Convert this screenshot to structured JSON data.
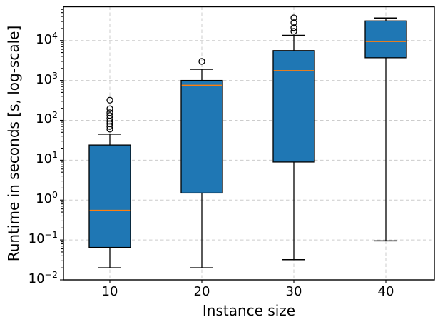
{
  "chart_data": {
    "type": "boxplot",
    "title": "",
    "xlabel": "Instance size",
    "ylabel": "Runtime in seconds [s, log-scale]",
    "x_categories": [
      "10",
      "20",
      "30",
      "40"
    ],
    "y_scale": "log",
    "ylim": [
      0.01,
      70000
    ],
    "grid": {
      "visible": true,
      "style": "dashed",
      "color": "#cccccc"
    },
    "legend": "none",
    "y_ticks": [
      {
        "base": "10",
        "exp": "4",
        "value": 10000
      },
      {
        "base": "10",
        "exp": "3",
        "value": 1000
      },
      {
        "base": "10",
        "exp": "2",
        "value": 100
      },
      {
        "base": "10",
        "exp": "1",
        "value": 10
      },
      {
        "base": "10",
        "exp": "0",
        "value": 1
      },
      {
        "base": "10",
        "exp": "−1",
        "value": 0.1
      },
      {
        "base": "10",
        "exp": "−2",
        "value": 0.01
      }
    ],
    "colors": {
      "box_fill": "#1f77b4",
      "box_edge": "#000000",
      "median": "#ff7f0e",
      "whisker": "#000000",
      "flier_edge": "#000000",
      "grid": "#cccccc"
    },
    "boxes": [
      {
        "category": "10",
        "whisker_low": 0.02,
        "q1": 0.065,
        "median": 0.55,
        "q3": 24,
        "whisker_high": 45,
        "outliers": [
          60,
          70,
          82,
          95,
          112,
          132,
          155,
          195,
          320
        ]
      },
      {
        "category": "20",
        "whisker_low": 0.02,
        "q1": 1.5,
        "median": 750,
        "q3": 1000,
        "whisker_high": 1900,
        "outliers": [
          3000
        ]
      },
      {
        "category": "30",
        "whisker_low": 0.032,
        "q1": 9,
        "median": 1750,
        "q3": 5600,
        "whisker_high": 13500,
        "outliers": [
          17000,
          21000,
          28000,
          37000
        ]
      },
      {
        "category": "40",
        "whisker_low": 0.095,
        "q1": 3700,
        "median": 9500,
        "q3": 31000,
        "whisker_high": 36500,
        "outliers": []
      }
    ]
  }
}
